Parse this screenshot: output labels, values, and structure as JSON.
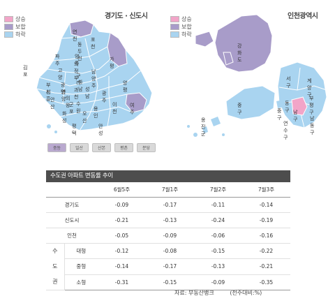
{
  "gyeonggi": {
    "title": "경기도 · 신도시",
    "legend": [
      {
        "label": "상승",
        "color": "#f2a5c8"
      },
      {
        "label": "보합",
        "color": "#a89cc9"
      },
      {
        "label": "하락",
        "color": "#a9d4f0"
      }
    ],
    "regions": [
      "연천",
      "포천",
      "동두천",
      "파주",
      "양주",
      "의정부",
      "가평",
      "김포",
      "고양",
      "남양주",
      "구리",
      "하남",
      "부천",
      "광명",
      "시흥",
      "안양",
      "과천",
      "안산",
      "의왕",
      "성남",
      "광주",
      "양평",
      "수원",
      "군포",
      "용인",
      "이천",
      "여주",
      "화성",
      "오산",
      "평택",
      "안성"
    ]
  },
  "newtowns": [
    "중동",
    "일산",
    "산본",
    "평촌",
    "분당"
  ],
  "incheon": {
    "title": "인천광역시",
    "legend": [
      {
        "label": "상승",
        "color": "#f2a5c8"
      },
      {
        "label": "보합",
        "color": "#a89cc9"
      },
      {
        "label": "하락",
        "color": "#a9d4f0"
      }
    ],
    "regions": [
      "강화도",
      "서구",
      "계양구",
      "부평구",
      "동구",
      "중구",
      "남구",
      "남동구",
      "연수구",
      "옹진군"
    ]
  },
  "table": {
    "title": "수도권 아파트 변동률 추이",
    "columns": [
      "6월5주",
      "7월1주",
      "7월2주",
      "7월3주"
    ],
    "rows": [
      {
        "label": "경기도",
        "values": [
          "-0.09",
          "-0.17",
          "-0.11",
          "-0.14"
        ]
      },
      {
        "label": "신도시",
        "values": [
          "-0.21",
          "-0.13",
          "-0.24",
          "-0.19"
        ]
      },
      {
        "label": "인천",
        "values": [
          "-0.05",
          "-0.09",
          "-0.06",
          "-0.16"
        ]
      }
    ],
    "group": {
      "chars": [
        "수",
        "도",
        "권"
      ],
      "rows": [
        {
          "label": "대형",
          "values": [
            "-0.12",
            "-0.08",
            "-0.15",
            "-0.22"
          ]
        },
        {
          "label": "중형",
          "values": [
            "-0.14",
            "-0.17",
            "-0.13",
            "-0.21"
          ]
        },
        {
          "label": "소형",
          "values": [
            "-0.31",
            "-0.15",
            "-0.09",
            "-0.35"
          ]
        }
      ]
    },
    "source": "자료: 부동산뱅크",
    "unit": "(전주대비:%)"
  }
}
